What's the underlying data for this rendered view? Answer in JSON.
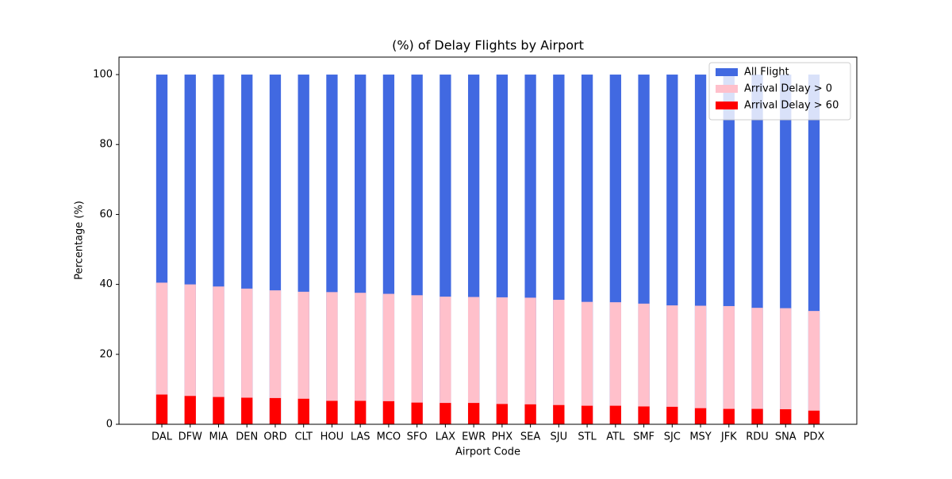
{
  "chart_data": {
    "type": "overlay-bar",
    "title": "(%) of Delay Flights by Airport",
    "x_label": "Airport Code",
    "y_label": "Percentage (%)",
    "categories": [
      "DAL",
      "DFW",
      "MIA",
      "DEN",
      "ORD",
      "CLT",
      "HOU",
      "LAS",
      "MCO",
      "SFO",
      "LAX",
      "EWR",
      "PHX",
      "SEA",
      "SJU",
      "STL",
      "ATL",
      "SMF",
      "SJC",
      "MSY",
      "JFK",
      "RDU",
      "SNA",
      "PDX"
    ],
    "series": [
      {
        "name": "All Flight",
        "color": "#4169e1",
        "values": [
          100,
          100,
          100,
          100,
          100,
          100,
          100,
          100,
          100,
          100,
          100,
          100,
          100,
          100,
          100,
          100,
          100,
          100,
          100,
          100,
          100,
          100,
          100,
          100
        ]
      },
      {
        "name": "Arrival Delay > 0",
        "color": "#ffc0cb",
        "values": [
          40.5,
          40.0,
          39.4,
          38.8,
          38.3,
          37.9,
          37.8,
          37.6,
          37.3,
          36.9,
          36.5,
          36.4,
          36.3,
          36.2,
          35.6,
          35.0,
          34.9,
          34.5,
          34.0,
          33.9,
          33.8,
          33.3,
          33.2,
          32.4
        ]
      },
      {
        "name": "Arrival Delay > 60",
        "color": "#ff0000",
        "values": [
          8.5,
          8.1,
          7.8,
          7.6,
          7.5,
          7.3,
          6.7,
          6.7,
          6.6,
          6.2,
          6.1,
          6.1,
          5.8,
          5.7,
          5.5,
          5.3,
          5.3,
          5.1,
          5.0,
          4.6,
          4.4,
          4.4,
          4.3,
          3.9
        ]
      }
    ],
    "ylim": [
      0,
      105
    ],
    "yticks": [
      0,
      20,
      40,
      60,
      80,
      100
    ],
    "legend": "upper right"
  }
}
